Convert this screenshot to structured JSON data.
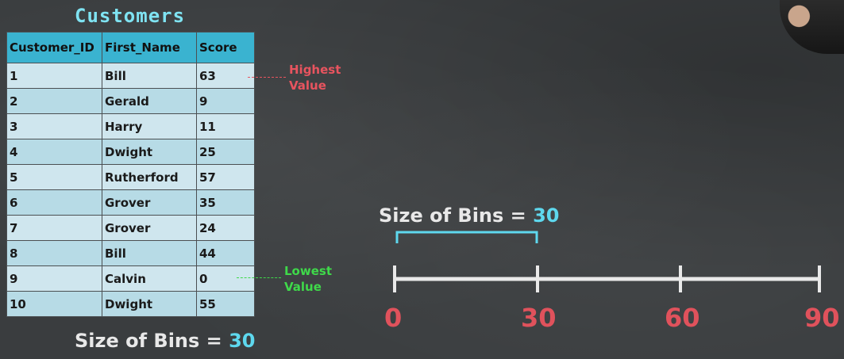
{
  "title": "Customers",
  "table": {
    "headers": [
      "Customer_ID",
      "First_Name",
      "Score"
    ],
    "rows": [
      [
        "1",
        "Bill",
        "63"
      ],
      [
        "2",
        "Gerald",
        "9"
      ],
      [
        "3",
        "Harry",
        "11"
      ],
      [
        "4",
        "Dwight",
        "25"
      ],
      [
        "5",
        "Rutherford",
        "57"
      ],
      [
        "6",
        "Grover",
        "35"
      ],
      [
        "7",
        "Grover",
        "24"
      ],
      [
        "8",
        "Bill",
        "44"
      ],
      [
        "9",
        "Calvin",
        "0"
      ],
      [
        "10",
        "Dwight",
        "55"
      ]
    ]
  },
  "annotations": {
    "highest": "Highest\nValue",
    "lowest": "Lowest\nValue"
  },
  "bins_label": "Size of Bins = ",
  "bins_value": "30",
  "axis": {
    "ticks": [
      "0",
      "30",
      "60",
      "90"
    ]
  },
  "colors": {
    "accent_cyan": "#5ed8ee",
    "tick_red": "#e0525c",
    "highest_red": "#e8545f",
    "lowest_green": "#3fd94a"
  }
}
